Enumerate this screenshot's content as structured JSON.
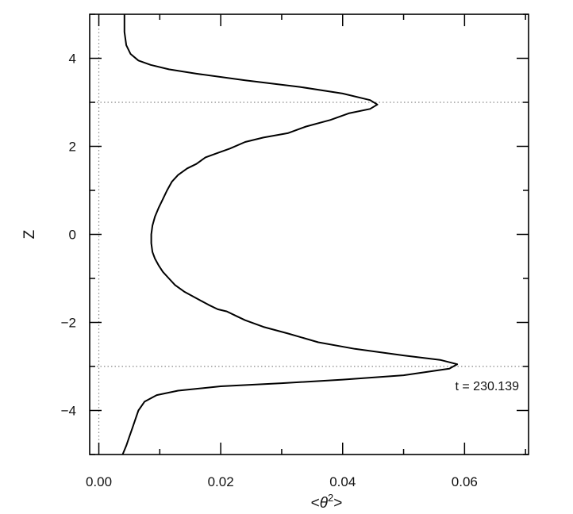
{
  "chart_data": {
    "type": "line",
    "title": "",
    "xlabel_parts": {
      "open": "<",
      "symbol": "θ",
      "power": "2",
      "close": ">"
    },
    "ylabel": "Z",
    "xlim": [
      -0.0015,
      0.0705
    ],
    "ylim": [
      -5,
      5
    ],
    "xticks": [
      0.0,
      0.02,
      0.04,
      0.06
    ],
    "xtick_labels": [
      "0.00",
      "0.02",
      "0.04",
      "0.06"
    ],
    "yticks": [
      -4,
      -2,
      0,
      2,
      4
    ],
    "ytick_labels": [
      "−4",
      "−2",
      "0",
      "2",
      "4"
    ],
    "grid": false,
    "reference_lines": {
      "horizontal": [
        3,
        -3
      ],
      "vertical": [
        0
      ]
    },
    "annotation": "t = 230.139",
    "series": [
      {
        "color": "#000000",
        "x": [
          0.0042,
          0.0042,
          0.0045,
          0.0052,
          0.0065,
          0.0085,
          0.0115,
          0.016,
          0.024,
          0.033,
          0.04,
          0.0445,
          0.0457,
          0.0445,
          0.041,
          0.038,
          0.034,
          0.031,
          0.027,
          0.024,
          0.0215,
          0.0195,
          0.0175,
          0.016,
          0.0145,
          0.013,
          0.012,
          0.0112,
          0.0105,
          0.0098,
          0.0092,
          0.0088,
          0.0086,
          0.0086,
          0.0088,
          0.0092,
          0.0098,
          0.0105,
          0.0115,
          0.0125,
          0.014,
          0.016,
          0.018,
          0.0195,
          0.021,
          0.0225,
          0.024,
          0.027,
          0.031,
          0.036,
          0.042,
          0.05,
          0.056,
          0.0588,
          0.0575,
          0.05,
          0.04,
          0.03,
          0.02,
          0.013,
          0.0095,
          0.0075,
          0.0065,
          0.006,
          0.0055,
          0.005,
          0.0045,
          0.0039
        ],
        "y": [
          5.0,
          4.6,
          4.3,
          4.1,
          3.95,
          3.85,
          3.75,
          3.65,
          3.5,
          3.35,
          3.2,
          3.05,
          2.95,
          2.85,
          2.75,
          2.6,
          2.45,
          2.3,
          2.2,
          2.1,
          1.95,
          1.85,
          1.75,
          1.6,
          1.5,
          1.35,
          1.2,
          1.0,
          0.8,
          0.6,
          0.4,
          0.2,
          0.0,
          -0.2,
          -0.4,
          -0.55,
          -0.7,
          -0.85,
          -1.0,
          -1.15,
          -1.3,
          -1.45,
          -1.6,
          -1.7,
          -1.75,
          -1.85,
          -1.95,
          -2.1,
          -2.25,
          -2.45,
          -2.6,
          -2.75,
          -2.85,
          -2.95,
          -3.05,
          -3.2,
          -3.3,
          -3.38,
          -3.45,
          -3.55,
          -3.65,
          -3.8,
          -4.0,
          -4.2,
          -4.4,
          -4.6,
          -4.8,
          -5.0
        ]
      }
    ]
  }
}
